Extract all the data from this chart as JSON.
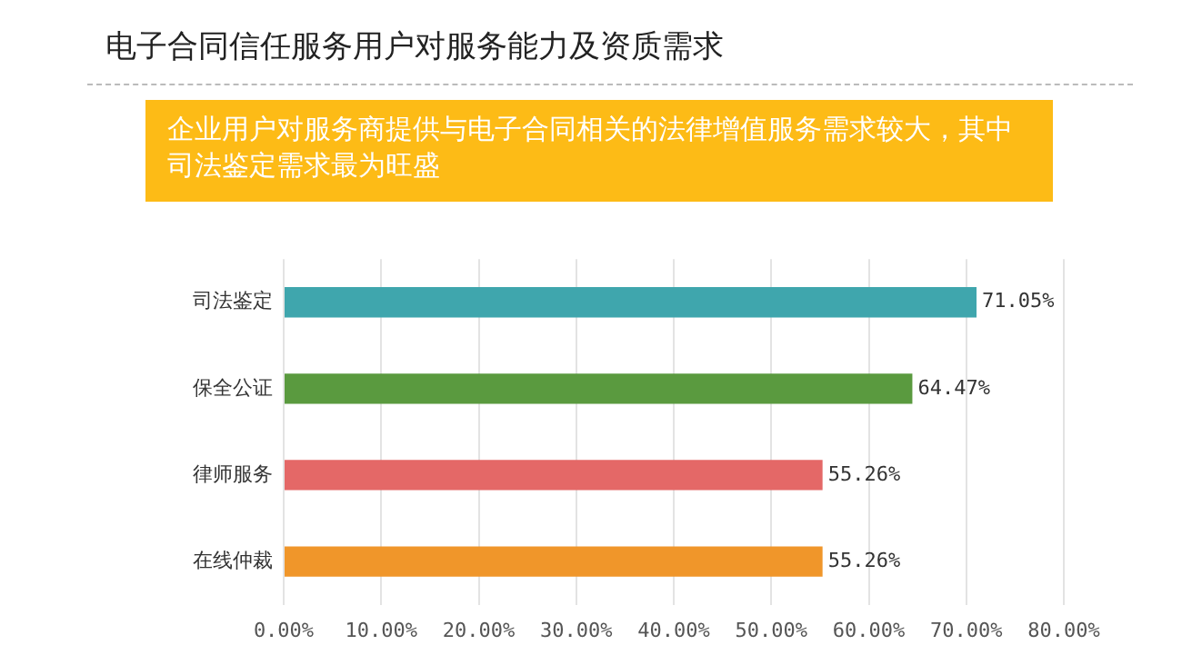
{
  "chart_data": {
    "type": "bar",
    "orientation": "horizontal",
    "title": "电子合同信任服务用户对服务能力及资质需求",
    "subtitle": "企业用户对服务商提供与电子合同相关的法律增值服务需求较大，其中司法鉴定需求最为旺盛",
    "categories": [
      "司法鉴定",
      "保全公证",
      "律师服务",
      "在线仲裁"
    ],
    "values": [
      71.05,
      64.47,
      55.26,
      55.26
    ],
    "colors": [
      "#3fa6ad",
      "#5a9a3f",
      "#e46867",
      "#f0962a"
    ],
    "value_labels": [
      "71.05%",
      "64.47%",
      "55.26%",
      "55.26%"
    ],
    "xlim": [
      0,
      80
    ],
    "xticks": [
      {
        "value": 0,
        "label": "0.00%"
      },
      {
        "value": 10,
        "label": "10.00%"
      },
      {
        "value": 20,
        "label": "20.00%"
      },
      {
        "value": 30,
        "label": "30.00%"
      },
      {
        "value": 40,
        "label": "40.00%"
      },
      {
        "value": 50,
        "label": "50.00%"
      },
      {
        "value": 60,
        "label": "60.00%"
      },
      {
        "value": 70,
        "label": "70.00%"
      },
      {
        "value": 80,
        "label": "80.00%"
      }
    ],
    "grid": "x",
    "legend": false
  }
}
